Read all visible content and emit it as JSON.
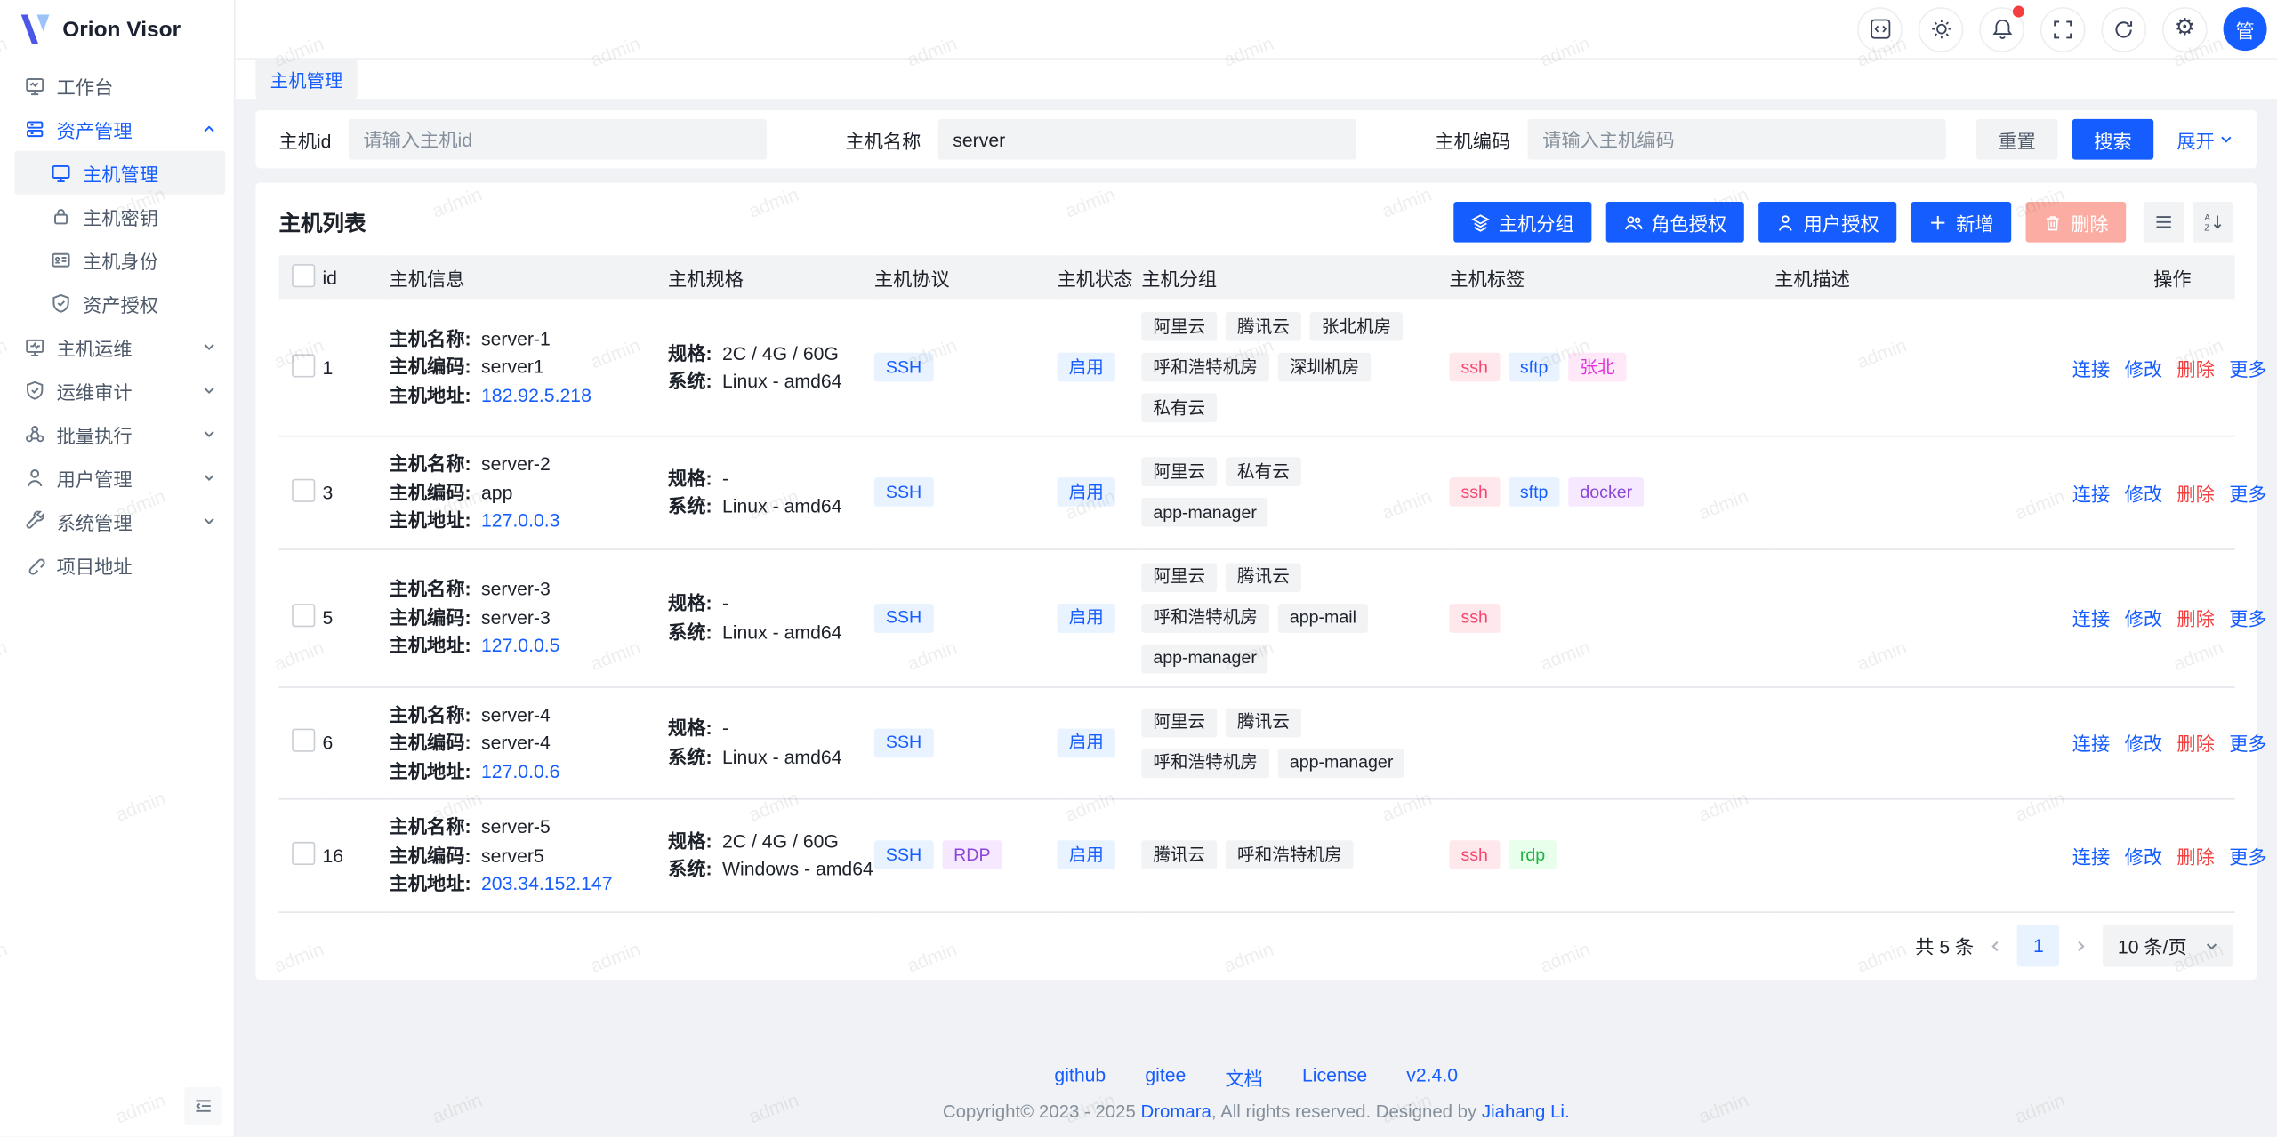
{
  "app": {
    "name": "Orion Visor"
  },
  "topbar": {
    "tab": "主机管理",
    "avatar": "管",
    "icons": [
      "code-icon",
      "theme-icon",
      "notification-icon",
      "fullscreen-icon",
      "refresh-icon",
      "settings-icon"
    ]
  },
  "sidebar": {
    "items": [
      {
        "label": "工作台",
        "icon": "workbench-icon"
      },
      {
        "label": "资产管理",
        "icon": "assets-icon",
        "expanded": true,
        "children": [
          {
            "label": "主机管理",
            "icon": "host-icon",
            "active": true
          },
          {
            "label": "主机密钥",
            "icon": "key-icon"
          },
          {
            "label": "主机身份",
            "icon": "identity-icon"
          },
          {
            "label": "资产授权",
            "icon": "grant-icon"
          }
        ]
      },
      {
        "label": "主机运维",
        "icon": "ops-icon"
      },
      {
        "label": "运维审计",
        "icon": "audit-icon"
      },
      {
        "label": "批量执行",
        "icon": "batch-icon"
      },
      {
        "label": "用户管理",
        "icon": "users-icon"
      },
      {
        "label": "系统管理",
        "icon": "system-icon"
      },
      {
        "label": "项目地址",
        "icon": "link-icon"
      }
    ]
  },
  "search": {
    "fields": [
      {
        "label": "主机id",
        "placeholder": "请输入主机id",
        "value": ""
      },
      {
        "label": "主机名称",
        "placeholder": "",
        "value": "server"
      },
      {
        "label": "主机编码",
        "placeholder": "请输入主机编码",
        "value": ""
      }
    ],
    "reset_label": "重置",
    "search_label": "搜索",
    "expand_label": "展开"
  },
  "table": {
    "title": "主机列表",
    "toolbar": {
      "group": "主机分组",
      "role": "角色授权",
      "user": "用户授权",
      "add": "新增",
      "delete": "删除"
    },
    "columns": [
      "id",
      "主机信息",
      "主机规格",
      "主机协议",
      "主机状态",
      "主机分组",
      "主机标签",
      "主机描述",
      "操作"
    ],
    "row_labels": {
      "name": "主机名称:",
      "code": "主机编码:",
      "addr": "主机地址:",
      "spec": "规格:",
      "sys": "系统:"
    },
    "row_actions": [
      "连接",
      "修改",
      "删除",
      "更多"
    ],
    "rows": [
      {
        "id": "1",
        "name": "server-1",
        "code": "server1",
        "addr": "182.92.5.218",
        "spec": "2C / 4G / 60G",
        "sys": "Linux - amd64",
        "protocols": [
          {
            "label": "SSH",
            "color": "blue"
          }
        ],
        "status": "启用",
        "groups": [
          "阿里云",
          "腾讯云",
          "张北机房",
          "呼和浩特机房",
          "深圳机房",
          "私有云"
        ],
        "tags": [
          {
            "label": "ssh",
            "color": "pink"
          },
          {
            "label": "sftp",
            "color": "blue"
          },
          {
            "label": "张北",
            "color": "magenta"
          }
        ]
      },
      {
        "id": "3",
        "name": "server-2",
        "code": "app",
        "addr": "127.0.0.3",
        "spec": "-",
        "sys": "Linux - amd64",
        "protocols": [
          {
            "label": "SSH",
            "color": "blue"
          }
        ],
        "status": "启用",
        "groups": [
          "阿里云",
          "私有云",
          "app-manager"
        ],
        "tags": [
          {
            "label": "ssh",
            "color": "pink"
          },
          {
            "label": "sftp",
            "color": "blue"
          },
          {
            "label": "docker",
            "color": "purple"
          }
        ]
      },
      {
        "id": "5",
        "name": "server-3",
        "code": "server-3",
        "addr": "127.0.0.5",
        "spec": "-",
        "sys": "Linux - amd64",
        "protocols": [
          {
            "label": "SSH",
            "color": "blue"
          }
        ],
        "status": "启用",
        "groups": [
          "阿里云",
          "腾讯云",
          "呼和浩特机房",
          "app-mail",
          "app-manager"
        ],
        "tags": [
          {
            "label": "ssh",
            "color": "pink"
          }
        ]
      },
      {
        "id": "6",
        "name": "server-4",
        "code": "server-4",
        "addr": "127.0.0.6",
        "spec": "-",
        "sys": "Linux - amd64",
        "protocols": [
          {
            "label": "SSH",
            "color": "blue"
          }
        ],
        "status": "启用",
        "groups": [
          "阿里云",
          "腾讯云",
          "呼和浩特机房",
          "app-manager"
        ],
        "tags": []
      },
      {
        "id": "16",
        "name": "server-5",
        "code": "server5",
        "addr": "203.34.152.147",
        "spec": "2C / 4G / 60G",
        "sys": "Windows - amd64",
        "protocols": [
          {
            "label": "SSH",
            "color": "blue"
          },
          {
            "label": "RDP",
            "color": "purple"
          }
        ],
        "status": "启用",
        "groups": [
          "腾讯云",
          "呼和浩特机房"
        ],
        "tags": [
          {
            "label": "ssh",
            "color": "pink"
          },
          {
            "label": "rdp",
            "color": "green"
          }
        ]
      }
    ]
  },
  "pagination": {
    "total": "共 5 条",
    "page": "1",
    "page_size": "10 条/页"
  },
  "footer": {
    "links": [
      "github",
      "gitee",
      "文档",
      "License",
      "v2.4.0"
    ],
    "copyright_prefix": "Copyright© 2023 - 2025 ",
    "copyright_org": "Dromara",
    "copyright_mid": ", All rights reserved. Designed by ",
    "copyright_author": "Jiahang Li."
  },
  "watermark": {
    "text": "admin"
  },
  "colors": {
    "primary": "#165dff",
    "danger": "#f53f3f",
    "status_enabled_bg": "#e8f3ff",
    "page_bg": "#f0f2f5"
  }
}
